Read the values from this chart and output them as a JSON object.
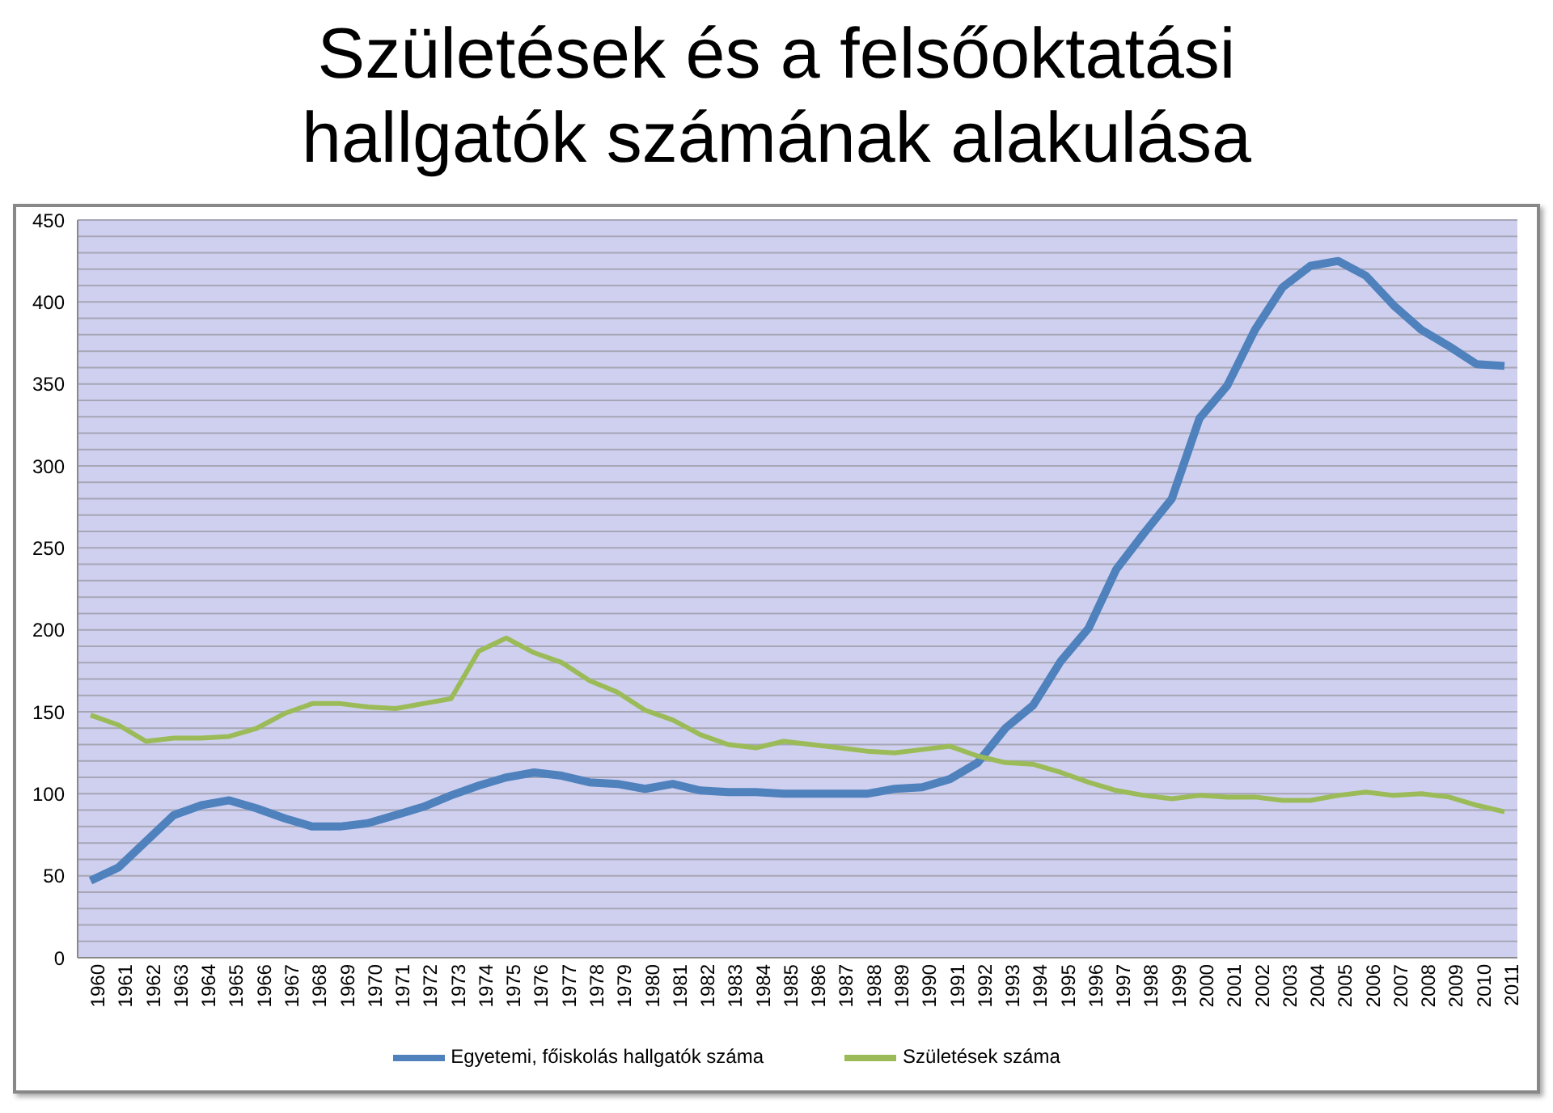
{
  "chart_data": {
    "type": "line",
    "title": "Születések és a felsőoktatási hallgatók számának alakulása",
    "categories": [
      "1960",
      "1961",
      "1962",
      "1963",
      "1964",
      "1965",
      "1966",
      "1967",
      "1968",
      "1969",
      "1970",
      "1971",
      "1972",
      "1973",
      "1974",
      "1975",
      "1976",
      "1977",
      "1978",
      "1979",
      "1980",
      "1981",
      "1982",
      "1983",
      "1984",
      "1985",
      "1986",
      "1987",
      "1988",
      "1989",
      "1990",
      "1991",
      "1992",
      "1993",
      "1994",
      "1995",
      "1996",
      "1997",
      "1998",
      "1999",
      "2000",
      "2001",
      "2002",
      "2003",
      "2004",
      "2005",
      "2006",
      "2007",
      "2008",
      "2009",
      "2010",
      "2011"
    ],
    "series": [
      {
        "name": "Egyetemi, főiskolás hallgatók száma",
        "color": "#4f81bd",
        "values": [
          47,
          55,
          71,
          87,
          93,
          96,
          91,
          85,
          80,
          80,
          82,
          87,
          92,
          99,
          105,
          110,
          113,
          111,
          107,
          106,
          103,
          106,
          102,
          101,
          101,
          100,
          100,
          100,
          100,
          103,
          104,
          109,
          119,
          140,
          154,
          181,
          201,
          237,
          259,
          280,
          329,
          349,
          383,
          409,
          422,
          425,
          416,
          398,
          383,
          373,
          362,
          361
        ]
      },
      {
        "name": "Születések száma",
        "color": "#9bbb59",
        "values": [
          148,
          142,
          132,
          134,
          134,
          135,
          140,
          149,
          155,
          155,
          153,
          152,
          155,
          158,
          187,
          195,
          186,
          180,
          169,
          162,
          151,
          145,
          136,
          130,
          128,
          132,
          130,
          128,
          126,
          125,
          127,
          129,
          123,
          119,
          118,
          113,
          107,
          102,
          99,
          97,
          99,
          98,
          98,
          96,
          96,
          99,
          101,
          99,
          100,
          98,
          93,
          89
        ]
      }
    ],
    "ylim": [
      0,
      450
    ],
    "yticks": [
      0,
      {
        "value": 10,
        "label": null
      },
      {
        "value": 20,
        "label": null
      },
      {
        "value": 30,
        "label": null
      },
      {
        "value": 40,
        "label": null
      },
      50,
      {
        "value": 60,
        "label": null
      },
      {
        "value": 70,
        "label": null
      },
      {
        "value": 80,
        "label": null
      },
      {
        "value": 90,
        "label": null
      },
      100,
      {
        "value": 110,
        "label": null
      },
      {
        "value": 120,
        "label": null
      },
      {
        "value": 130,
        "label": null
      },
      {
        "value": 140,
        "label": null
      },
      150,
      {
        "value": 160,
        "label": null
      },
      {
        "value": 170,
        "label": null
      },
      {
        "value": 180,
        "label": null
      },
      {
        "value": 190,
        "label": null
      },
      200,
      {
        "value": 210,
        "label": null
      },
      {
        "value": 220,
        "label": null
      },
      {
        "value": 230,
        "label": null
      },
      {
        "value": 240,
        "label": null
      },
      250,
      {
        "value": 260,
        "label": null
      },
      {
        "value": 270,
        "label": null
      },
      {
        "value": 280,
        "label": null
      },
      {
        "value": 290,
        "label": null
      },
      300,
      {
        "value": 310,
        "label": null
      },
      {
        "value": 320,
        "label": null
      },
      {
        "value": 330,
        "label": null
      },
      {
        "value": 340,
        "label": null
      },
      350,
      {
        "value": 360,
        "label": null
      },
      {
        "value": 370,
        "label": null
      },
      {
        "value": 380,
        "label": null
      },
      {
        "value": 390,
        "label": null
      },
      400,
      {
        "value": 410,
        "label": null
      },
      {
        "value": 420,
        "label": null
      },
      {
        "value": 430,
        "label": null
      },
      {
        "value": 440,
        "label": null
      },
      450
    ],
    "grid": "y",
    "legend": "bottom",
    "marker": "none",
    "line_style": "solid"
  }
}
